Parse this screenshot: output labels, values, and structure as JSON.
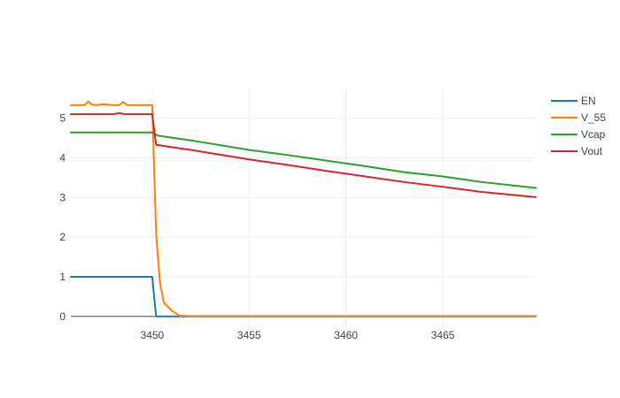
{
  "chart_data": {
    "type": "line",
    "title": "",
    "xlabel": "",
    "ylabel": "",
    "xlim": [
      3445.8,
      3469.8
    ],
    "ylim": [
      -0.25,
      5.75
    ],
    "grid": true,
    "legend_position": "top-right",
    "x_ticks": [
      3450,
      3455,
      3460,
      3465
    ],
    "y_ticks": [
      0,
      1,
      2,
      3,
      4,
      5
    ],
    "series": [
      {
        "name": "EN",
        "color": "#1f77b4",
        "x": [
          3445.8,
          3450.0,
          3450.2,
          3469.8
        ],
        "y": [
          1.0,
          1.0,
          0.0,
          0.0
        ]
      },
      {
        "name": "V_55",
        "color": "#ff7f0e",
        "x": [
          3445.8,
          3446.5,
          3446.7,
          3446.9,
          3447.1,
          3447.5,
          3448.0,
          3448.3,
          3448.5,
          3448.7,
          3449.2,
          3450.0,
          3450.2,
          3450.4,
          3450.6,
          3451.0,
          3451.4,
          3452.0,
          3469.8
        ],
        "y": [
          5.33,
          5.33,
          5.42,
          5.34,
          5.33,
          5.35,
          5.33,
          5.33,
          5.41,
          5.33,
          5.33,
          5.33,
          2.1,
          0.85,
          0.35,
          0.15,
          0.02,
          0.01,
          0.01
        ]
      },
      {
        "name": "Vcap",
        "color": "#2ca02c",
        "x": [
          3445.8,
          3450.0,
          3450.3,
          3451.0,
          3452.0,
          3453.0,
          3455.0,
          3457.0,
          3459.0,
          3461.0,
          3463.0,
          3465.0,
          3467.0,
          3469.8
        ],
        "y": [
          4.64,
          4.64,
          4.56,
          4.51,
          4.44,
          4.36,
          4.2,
          4.07,
          3.93,
          3.79,
          3.64,
          3.53,
          3.39,
          3.24
        ]
      },
      {
        "name": "Vout",
        "color": "#d62728",
        "x": [
          3445.8,
          3448.0,
          3448.3,
          3448.6,
          3450.0,
          3450.2,
          3451.0,
          3452.0,
          3453.0,
          3455.0,
          3457.0,
          3459.0,
          3461.0,
          3463.0,
          3465.0,
          3467.0,
          3469.8
        ],
        "y": [
          5.1,
          5.1,
          5.13,
          5.1,
          5.1,
          4.33,
          4.27,
          4.2,
          4.12,
          3.96,
          3.82,
          3.67,
          3.53,
          3.39,
          3.27,
          3.14,
          3.01
        ]
      }
    ]
  }
}
